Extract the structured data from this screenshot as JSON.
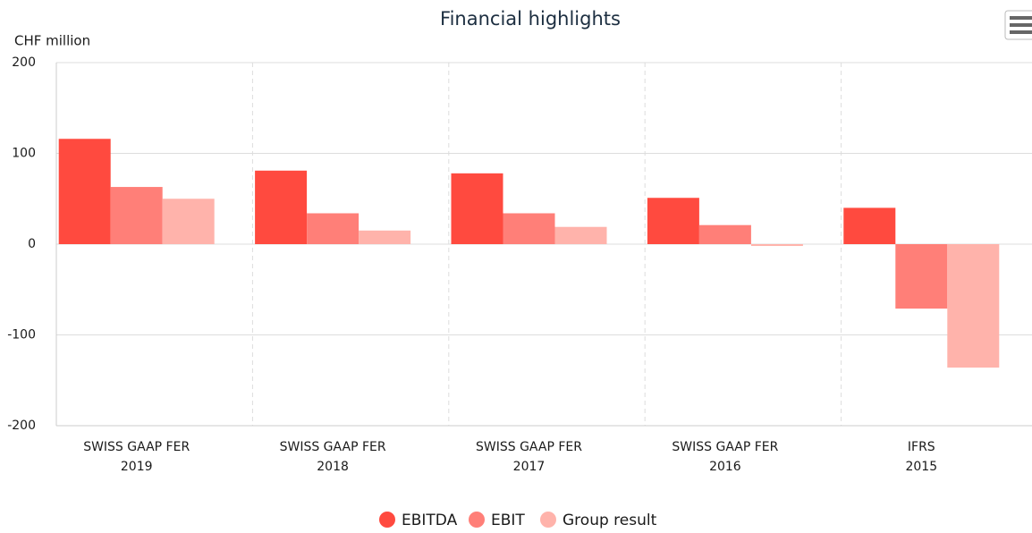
{
  "chart_data": {
    "type": "bar",
    "title": "Financial highlights",
    "y_label": "CHF million",
    "categories": [
      [
        "SWISS GAAP FER",
        "2019"
      ],
      [
        "SWISS GAAP FER",
        "2018"
      ],
      [
        "SWISS GAAP FER",
        "2017"
      ],
      [
        "SWISS GAAP FER",
        "2016"
      ],
      [
        "IFRS",
        "2015"
      ]
    ],
    "series": [
      {
        "name": "EBITDA",
        "color": "#ff4a3f",
        "values": [
          116,
          81,
          78,
          51,
          40
        ]
      },
      {
        "name": "EBIT",
        "color": "#ff7f78",
        "values": [
          63,
          34,
          34,
          21,
          -71
        ]
      },
      {
        "name": "Group result",
        "color": "#ffb3ab",
        "values": [
          50,
          15,
          19,
          -2,
          -136
        ]
      }
    ],
    "ylim": [
      -200,
      200
    ],
    "yticks": [
      -200,
      -100,
      0,
      100,
      200
    ],
    "grid": true,
    "legend": "bottom"
  }
}
